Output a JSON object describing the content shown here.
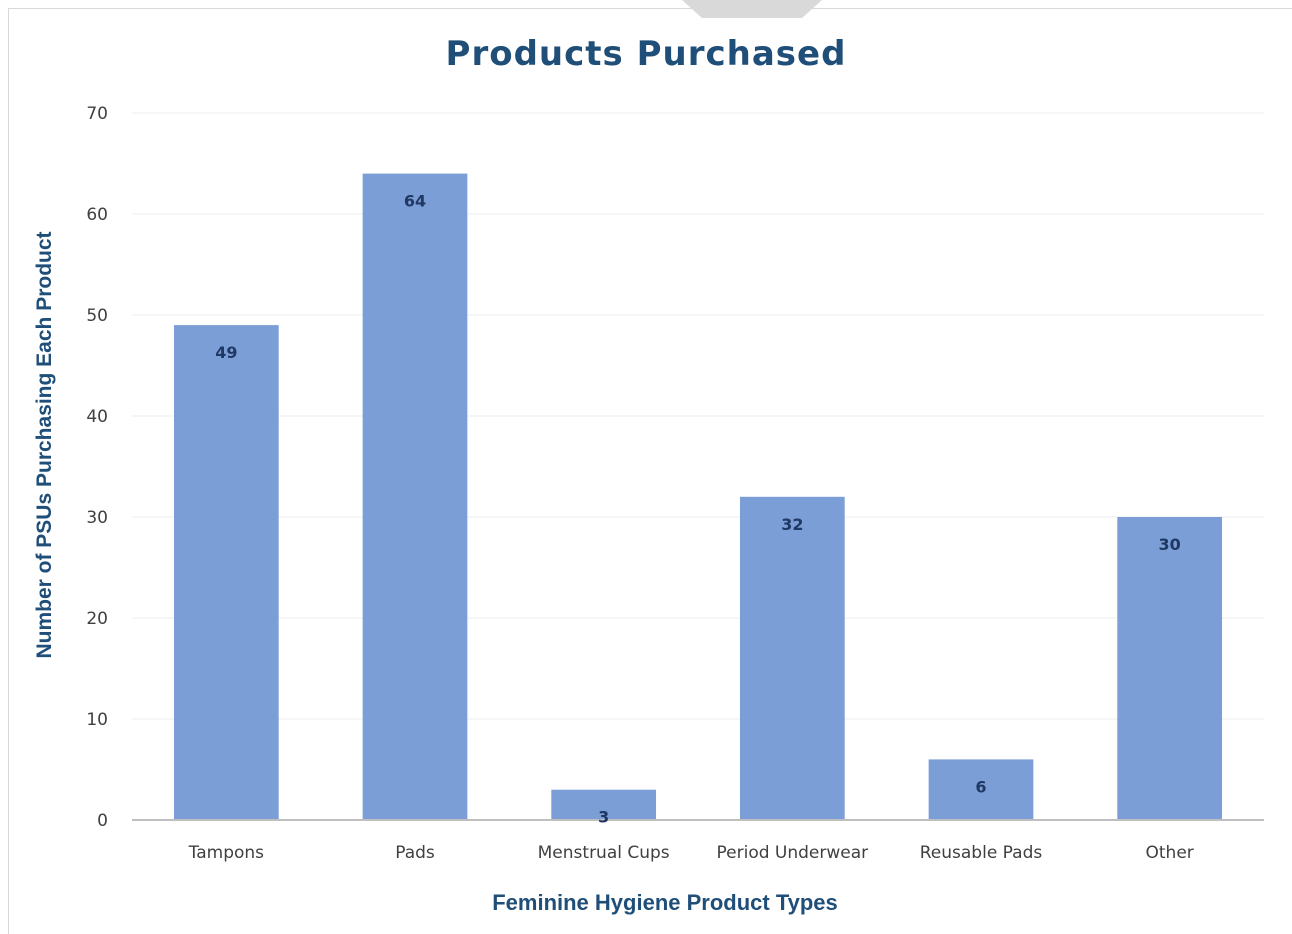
{
  "chart_data": {
    "type": "bar",
    "title": "Products Purchased",
    "xlabel": "Feminine Hygiene Product Types",
    "ylabel": "Number of PSUs Purchasing Each Product",
    "categories": [
      "Tampons",
      "Pads",
      "Menstrual Cups",
      "Period Underwear",
      "Reusable Pads",
      "Other"
    ],
    "values": [
      49,
      64,
      3,
      32,
      6,
      30
    ],
    "ylim": [
      0,
      70
    ],
    "yticks": [
      0,
      10,
      20,
      30,
      40,
      50,
      60,
      70
    ],
    "grid": true,
    "legend": "none",
    "bar_color": "#7b9ed6",
    "label_color": "#1f3864",
    "title_color": "#1f4e79"
  }
}
